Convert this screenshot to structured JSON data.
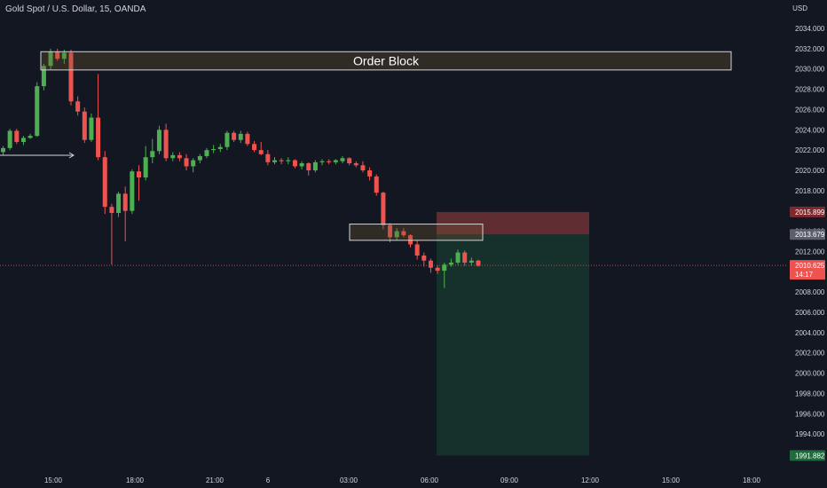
{
  "header": {
    "symbol_title": "Gold Spot / U.S. Dollar, 15, OANDA",
    "currency": "USD"
  },
  "colors": {
    "background": "#131722",
    "up": "#26a69a",
    "up_bright": "#4caf50",
    "down": "#ef5350",
    "text": "#d1d4dc",
    "current_price_line": "#ef5350"
  },
  "chart_data": {
    "type": "candlestick",
    "y_axis_ticks": [
      "1992.000",
      "1994.000",
      "1996.000",
      "1998.000",
      "2000.000",
      "2002.000",
      "2004.000",
      "2006.000",
      "2008.000",
      "2010.000",
      "2012.000",
      "2014.000",
      "2016.000",
      "2018.000",
      "2020.000",
      "2022.000",
      "2024.000",
      "2026.000",
      "2028.000",
      "2030.000",
      "2032.000",
      "2034.000"
    ],
    "ylim": [
      1991.3,
      2036.0
    ],
    "x_axis_ticks": [
      "15:00",
      "18:00",
      "21:00",
      "6",
      "03:00",
      "06:00",
      "09:00",
      "12:00",
      "15:00",
      "18:00"
    ],
    "candles": [
      [
        2021.8,
        2022.4,
        2021.5,
        2022.2
      ],
      [
        2022.2,
        2024.1,
        2022.0,
        2023.9
      ],
      [
        2023.9,
        2024.1,
        2022.6,
        2022.8
      ],
      [
        2022.8,
        2023.4,
        2022.5,
        2023.2
      ],
      [
        2023.2,
        2023.6,
        2023.1,
        2023.4
      ],
      [
        2023.4,
        2028.7,
        2023.3,
        2028.3
      ],
      [
        2028.3,
        2030.5,
        2027.9,
        2030.3
      ],
      [
        2030.3,
        2032.0,
        2029.9,
        2031.7
      ],
      [
        2031.7,
        2032.0,
        2030.8,
        2031.0
      ],
      [
        2031.0,
        2031.9,
        2030.5,
        2031.6
      ],
      [
        2031.6,
        2031.9,
        2026.4,
        2026.8
      ],
      [
        2026.8,
        2027.3,
        2025.4,
        2025.8
      ],
      [
        2025.8,
        2026.2,
        2022.7,
        2023.0
      ],
      [
        2023.0,
        2025.6,
        2022.8,
        2025.2
      ],
      [
        2025.2,
        2029.5,
        2021.0,
        2021.3
      ],
      [
        2021.3,
        2021.9,
        2015.7,
        2016.4
      ],
      [
        2016.4,
        2016.7,
        2010.7,
        2015.8
      ],
      [
        2015.8,
        2017.9,
        2015.4,
        2017.7
      ],
      [
        2017.7,
        2018.4,
        2013.0,
        2016.0
      ],
      [
        2016.0,
        2020.1,
        2015.7,
        2019.9
      ],
      [
        2019.9,
        2020.5,
        2017.0,
        2019.3
      ],
      [
        2019.3,
        2022.4,
        2019.0,
        2021.3
      ],
      [
        2021.3,
        2023.1,
        2020.7,
        2021.9
      ],
      [
        2021.9,
        2024.4,
        2021.6,
        2024.0
      ],
      [
        2024.0,
        2024.6,
        2020.9,
        2021.2
      ],
      [
        2021.2,
        2021.8,
        2020.9,
        2021.5
      ],
      [
        2021.5,
        2021.8,
        2020.9,
        2021.2
      ],
      [
        2021.2,
        2021.6,
        2020.0,
        2020.4
      ],
      [
        2020.4,
        2021.2,
        2019.8,
        2021.0
      ],
      [
        2021.0,
        2021.6,
        2020.7,
        2021.4
      ],
      [
        2021.4,
        2022.2,
        2021.2,
        2022.0
      ],
      [
        2022.0,
        2022.5,
        2021.7,
        2022.1
      ],
      [
        2022.1,
        2022.6,
        2021.8,
        2022.3
      ],
      [
        2022.3,
        2023.9,
        2022.0,
        2023.7
      ],
      [
        2023.7,
        2023.9,
        2022.8,
        2023.0
      ],
      [
        2023.0,
        2023.9,
        2022.7,
        2023.6
      ],
      [
        2023.6,
        2023.8,
        2022.4,
        2022.6
      ],
      [
        2022.6,
        2022.9,
        2021.8,
        2022.0
      ],
      [
        2022.0,
        2022.8,
        2021.5,
        2021.6
      ],
      [
        2021.6,
        2022.0,
        2020.5,
        2020.8
      ],
      [
        2020.8,
        2021.3,
        2020.6,
        2021.0
      ],
      [
        2021.0,
        2021.2,
        2020.6,
        2020.9
      ],
      [
        2020.9,
        2021.3,
        2020.6,
        2021.0
      ],
      [
        2021.0,
        2021.1,
        2020.2,
        2020.4
      ],
      [
        2020.4,
        2020.9,
        2020.1,
        2020.7
      ],
      [
        2020.7,
        2020.8,
        2019.5,
        2020.0
      ],
      [
        2020.0,
        2021.0,
        2019.8,
        2020.8
      ],
      [
        2020.8,
        2021.1,
        2020.5,
        2020.9
      ],
      [
        2020.9,
        2021.1,
        2020.6,
        2020.8
      ],
      [
        2020.8,
        2021.1,
        2020.6,
        2021.0
      ],
      [
        2020.9,
        2021.4,
        2020.7,
        2021.2
      ],
      [
        2021.2,
        2021.3,
        2020.5,
        2020.7
      ],
      [
        2020.7,
        2020.9,
        2020.3,
        2020.5
      ],
      [
        2020.5,
        2020.9,
        2019.8,
        2020.0
      ],
      [
        2020.0,
        2020.3,
        2019.0,
        2019.4
      ],
      [
        2019.4,
        2019.6,
        2017.5,
        2017.8
      ],
      [
        2017.8,
        2017.9,
        2014.2,
        2014.6
      ],
      [
        2014.6,
        2014.8,
        2012.9,
        2013.4
      ],
      [
        2013.4,
        2014.3,
        2013.1,
        2014.0
      ],
      [
        2014.0,
        2014.3,
        2013.4,
        2013.6
      ],
      [
        2013.6,
        2013.7,
        2012.4,
        2012.7
      ],
      [
        2012.7,
        2013.1,
        2011.2,
        2011.6
      ],
      [
        2011.6,
        2011.9,
        2010.5,
        2011.1
      ],
      [
        2011.1,
        2011.3,
        2009.9,
        2010.4
      ],
      [
        2010.4,
        2010.6,
        2009.8,
        2010.1
      ],
      [
        2010.1,
        2010.9,
        2008.4,
        2010.7
      ],
      [
        2010.7,
        2011.3,
        2010.5,
        2010.9
      ],
      [
        2010.9,
        2012.2,
        2010.7,
        2011.9
      ],
      [
        2011.9,
        2012.1,
        2010.6,
        2010.9
      ],
      [
        2010.9,
        2011.4,
        2010.6,
        2011.1
      ],
      [
        2011.1,
        2011.2,
        2010.5,
        2010.6
      ]
    ],
    "annotations": {
      "order_block": {
        "label": "Order Block",
        "top": 2031.7,
        "bottom": 2029.9
      },
      "small_zone": {
        "top": 2014.7,
        "bottom": 2013.1
      },
      "short_position": {
        "stop_price": "2015.899",
        "entry_price": "2013.679",
        "target_price": "1991.882",
        "stop": 2015.899,
        "entry": 2013.679,
        "target": 1991.882
      }
    },
    "current_price": {
      "value": 2010.625,
      "label": "2010.625",
      "countdown": "14:17"
    }
  }
}
